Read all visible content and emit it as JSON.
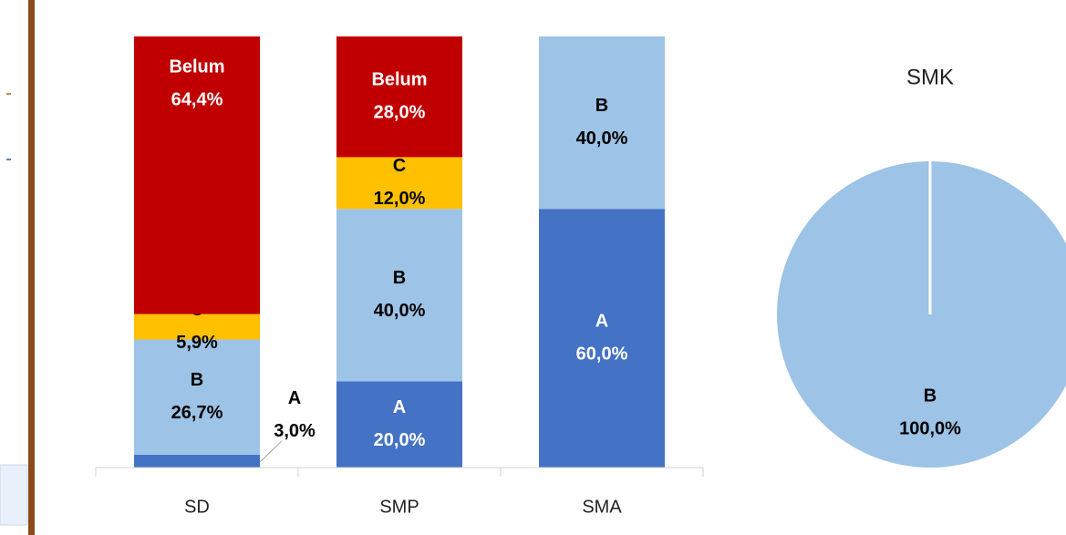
{
  "chart_data": [
    {
      "type": "stacked_bar",
      "categories": [
        "SD",
        "SMP",
        "SMA"
      ],
      "ylim": [
        0,
        100
      ],
      "series": [
        {
          "name": "A",
          "color": "#4472c4",
          "values": [
            3.0,
            20.0,
            60.0
          ],
          "value_labels": [
            "3,0%",
            "20,0%",
            "60,0%"
          ]
        },
        {
          "name": "B",
          "color": "#9dc3e6",
          "values": [
            26.7,
            40.0,
            40.0
          ],
          "value_labels": [
            "26,7%",
            "40,0%",
            "40,0%"
          ]
        },
        {
          "name": "C",
          "color": "#ffc000",
          "values": [
            5.9,
            12.0,
            null
          ],
          "value_labels": [
            "5,9%",
            "12,0%",
            null
          ]
        },
        {
          "name": "Belum",
          "color": "#c00000",
          "values": [
            64.4,
            28.0,
            null
          ],
          "value_labels": [
            "64,4%",
            "28,0%",
            null
          ]
        }
      ]
    },
    {
      "type": "pie",
      "title": "SMK",
      "categories": [
        "B"
      ],
      "values": [
        100.0
      ],
      "value_labels": [
        "100,0%"
      ],
      "colors": [
        "#9dc3e6"
      ]
    }
  ]
}
